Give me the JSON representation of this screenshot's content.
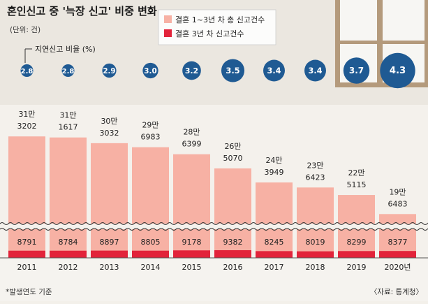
{
  "header": {
    "title": "혼인신고 중 '늑장 신고' 비중 변화",
    "unit": "(단위: 건)"
  },
  "legend": {
    "total_label": "결혼 1~3년 차 총 신고건수",
    "late_label": "결혼 3년 차 신고건수",
    "total_color": "#f7b1a4",
    "late_color": "#e2233a"
  },
  "bubble_label": "지연신고 비율 (%)",
  "footer": {
    "note": "*발생연도 기준",
    "source": "〈자료: 통계청〉"
  },
  "chart_data": {
    "type": "bar",
    "title": "혼인신고 중 '늑장 신고' 비중 변화",
    "unit": "건",
    "categories": [
      "2011",
      "2012",
      "2013",
      "2014",
      "2015",
      "2016",
      "2017",
      "2018",
      "2019",
      "2020년"
    ],
    "series": [
      {
        "name": "결혼 1~3년 차 총 신고건수",
        "values": [
          313202,
          311617,
          303032,
          296983,
          286399,
          265070,
          243949,
          236423,
          225115,
          196483
        ],
        "labels": [
          [
            "31만",
            "3202"
          ],
          [
            "31만",
            "1617"
          ],
          [
            "30만",
            "3032"
          ],
          [
            "29만",
            "6983"
          ],
          [
            "28만",
            "6399"
          ],
          [
            "26만",
            "5070"
          ],
          [
            "24만",
            "3949"
          ],
          [
            "23만",
            "6423"
          ],
          [
            "22만",
            "5115"
          ],
          [
            "19만",
            "6483"
          ]
        ]
      },
      {
        "name": "결혼 3년 차 신고건수",
        "values": [
          8791,
          8784,
          8897,
          8805,
          9178,
          9382,
          8245,
          8019,
          8299,
          8377
        ]
      },
      {
        "name": "지연신고 비율 (%)",
        "values": [
          2.8,
          2.8,
          2.9,
          3.0,
          3.2,
          3.5,
          3.4,
          3.4,
          3.7,
          4.3
        ],
        "labels": [
          "2.8",
          "2.8",
          "2.9",
          "3.0",
          "3.2",
          "3.5",
          "3.4",
          "3.4",
          "3.7",
          "4.3"
        ]
      }
    ],
    "axis_break": true,
    "legend_position": "top-left"
  }
}
